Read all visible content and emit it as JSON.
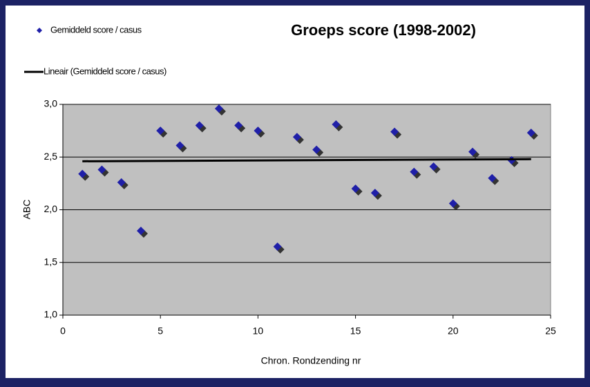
{
  "chart_data": {
    "type": "scatter",
    "title": "Groeps score (1998-2002)",
    "x_label": "Chron. Rondzending nr",
    "y_label": "ABC",
    "series": [
      {
        "name": "Gemiddeld score / casus",
        "color": "#1f1fa8",
        "kind": "scatter",
        "x": [
          1,
          2,
          3,
          4,
          5,
          6,
          7,
          8,
          9,
          10,
          11,
          12,
          13,
          14,
          15,
          16,
          17,
          18,
          19,
          20,
          21,
          22,
          23,
          24
        ],
        "values": [
          2.34,
          2.38,
          2.26,
          1.8,
          2.75,
          2.61,
          2.8,
          2.96,
          2.8,
          2.75,
          1.65,
          2.69,
          2.57,
          2.81,
          2.2,
          2.16,
          2.74,
          2.36,
          2.41,
          2.06,
          2.55,
          2.3,
          2.47,
          2.73
        ]
      },
      {
        "name": "Lineair (Gemiddeld score / casus)",
        "color": "#000000",
        "kind": "line",
        "x": [
          1,
          24
        ],
        "values": [
          2.46,
          2.48
        ]
      }
    ],
    "xlim": [
      0,
      25
    ],
    "xticks": [
      0,
      5,
      10,
      15,
      20,
      25
    ],
    "ylim": [
      1,
      3
    ],
    "yticks": [
      {
        "value": 1,
        "label": "1,0"
      },
      {
        "value": 1.5,
        "label": "1,5"
      },
      {
        "value": 2,
        "label": "2,0"
      },
      {
        "value": 2.5,
        "label": "2,5"
      },
      {
        "value": 3,
        "label": "3,0"
      }
    ],
    "grid": true,
    "plot_background": "#c0c0c0"
  }
}
